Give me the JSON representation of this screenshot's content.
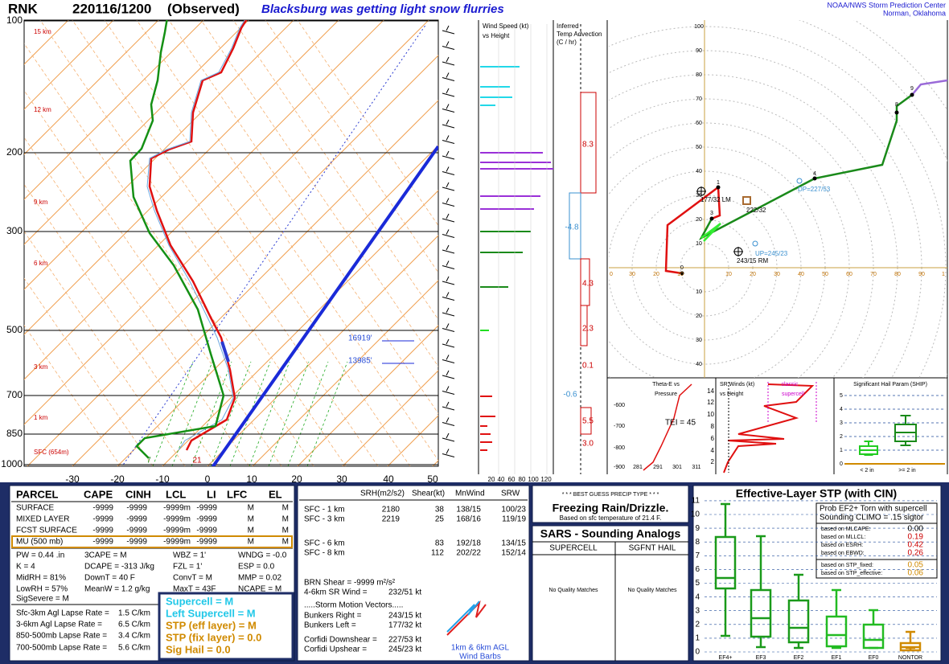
{
  "header": {
    "station": "RNK",
    "time": "220116/1200",
    "status": "(Observed)",
    "comment": "Blacksburg was getting light snow flurries",
    "org": "NOAA/NWS Storm Prediction Center",
    "location": "Norman, Oklahoma"
  },
  "skewt": {
    "pressure_labels": [
      "100",
      "200",
      "300",
      "500",
      "700",
      "850",
      "1000"
    ],
    "temp_labels": [
      "-30",
      "-20",
      "-10",
      "0",
      "10",
      "20",
      "30",
      "40",
      "50"
    ],
    "height_labels": [
      "15 km",
      "12 km",
      "9 km",
      "6 km",
      "3 km",
      "1 km",
      "SFC (654m)"
    ],
    "levels": [
      "16919'",
      "13985'"
    ],
    "sfc_dewpoint": "7",
    "sfc_temp": "21"
  },
  "wind_speed": {
    "title": "Wind Speed (kt)",
    "subtitle": "vs Height",
    "ticks": [
      "20",
      "40",
      "60",
      "80",
      "100",
      "120"
    ]
  },
  "temp_advection": {
    "title": [
      "Inferred",
      "Temp Advection",
      "(C / hr)"
    ],
    "values": [
      "8.3",
      "-4.8",
      "4.3",
      "2.3",
      "0.1",
      "-0.6",
      "5.5",
      "3.0"
    ]
  },
  "hodograph": {
    "y_ticks_up": [
      "100",
      "90",
      "80",
      "70",
      "60",
      "50",
      "40",
      "30",
      "20",
      "10"
    ],
    "y_ticks_down": [
      "10",
      "20",
      "30",
      "40"
    ],
    "x_ticks_left": [
      "0",
      "30",
      "20",
      "10"
    ],
    "x_ticks_right": [
      "10",
      "20",
      "30",
      "40",
      "50",
      "60",
      "70",
      "80",
      "90",
      "1"
    ],
    "points": [
      "0",
      "1",
      "3",
      "4",
      "8",
      "9"
    ],
    "left_mover": "177/32 LM",
    "mean_wind": "222/32",
    "downshear": "DP=227/53",
    "upshear": "UP=245/23",
    "right_mover": "243/15 RM"
  },
  "theta_e": {
    "title": [
      "Theta-E vs",
      "Pressure"
    ],
    "tei": "TEI = 45",
    "y_ticks": [
      "-600",
      "-700",
      "-800",
      "-900"
    ],
    "x_ticks": [
      "281",
      "291",
      "301",
      "311"
    ]
  },
  "sr_winds": {
    "title": [
      "SR Winds (kt)",
      "vs Height"
    ],
    "note": [
      "classic",
      "supercell"
    ],
    "y_ticks": [
      "14",
      "12",
      "10",
      "8",
      "6",
      "4",
      "2"
    ]
  },
  "ship": {
    "title": "Significant Hail Param (SHIP)",
    "y_ticks": [
      "5",
      "4",
      "3",
      "2",
      "1",
      "0"
    ],
    "x_ticks": [
      "< 2 in",
      ">= 2 in"
    ]
  },
  "parcel": {
    "header": [
      "PARCEL",
      "CAPE",
      "CINH",
      "LCL",
      "LI",
      "LFC",
      "EL"
    ],
    "rows": [
      [
        "SURFACE",
        "-9999",
        "-9999",
        "-9999m",
        "-9999",
        "M",
        "M"
      ],
      [
        "MIXED LAYER",
        "-9999",
        "-9999",
        "-9999m",
        "-9999",
        "M",
        "M"
      ],
      [
        "FCST SURFACE",
        "-9999",
        "-9999",
        "-9999m",
        "-9999",
        "M",
        "M"
      ],
      [
        "MU  (500 mb)",
        "-9999",
        "-9999",
        "-9999m",
        "-9999",
        "M",
        "M"
      ]
    ]
  },
  "indices": [
    [
      "PW = 0.44 .in",
      "3CAPE = M",
      "WBZ = 1'",
      "WNDG = -0.0"
    ],
    [
      "K = 4",
      "DCAPE = -313 J/kg",
      "FZL = 1'",
      "ESP = 0.0"
    ],
    [
      "MidRH = 81%",
      "DownT = 40 F",
      "ConvT = M",
      "MMP = 0.02"
    ],
    [
      "LowRH = 57%",
      "MeanW = 1.2 g/kg",
      "MaxT = 43F",
      "NCAPE = M"
    ],
    [
      "SigSevere = M"
    ]
  ],
  "lapse_rates": [
    [
      "Sfc-3km Agl Lapse Rate =",
      "1.5 C/km"
    ],
    [
      "3-6km Agl Lapse Rate =",
      "6.5 C/km"
    ],
    [
      "850-500mb Lapse Rate =",
      "3.4 C/km"
    ],
    [
      "700-500mb Lapse Rate =",
      "5.6 C/km"
    ]
  ],
  "params": [
    "Supercell = M",
    "Left Supercell = M",
    "STP (eff layer) = M",
    "STP (fix layer) = 0.0",
    "Sig Hail = 0.0"
  ],
  "kinematics": {
    "header": [
      "SRH(m2/s2)",
      "Shear(kt)",
      "MnWind",
      "SRW"
    ],
    "rows": [
      {
        "layer": "SFC - 1 km",
        "srh": "2180",
        "shear": "38",
        "mnwind": "138/15",
        "srw": "100/23"
      },
      {
        "layer": "SFC - 3 km",
        "srh": "2219",
        "shear": "25",
        "mnwind": "168/16",
        "srw": "119/19"
      },
      {
        "layer": "SFC - 6 km",
        "shear": "83",
        "mnwind": "192/18",
        "srw": "134/15"
      },
      {
        "layer": "SFC - 8 km",
        "shear": "112",
        "mnwind": "202/22",
        "srw": "152/14"
      }
    ],
    "brn_shear": "BRN Shear = -9999 m²/s²",
    "sr_wind_label": "4-6km SR Wind =",
    "sr_wind": "232/51 kt",
    "motion_header": ".....Storm Motion Vectors.....",
    "motion": [
      [
        "Bunkers Right =",
        "243/15 kt"
      ],
      [
        "Bunkers Left =",
        "177/32 kt"
      ],
      [
        "Corfidi Downshear =",
        "227/53 kt"
      ],
      [
        "Corfidi Upshear =",
        "245/23 kt"
      ]
    ],
    "barb_label": [
      "1km & 6km AGL",
      "Wind Barbs"
    ]
  },
  "precip": {
    "header": "* * * BEST GUESS PRECIP TYPE * * *",
    "type": "Freezing Rain/Drizzle.",
    "basis": "Based on sfc temperature of 21.4 F."
  },
  "sars": {
    "title": "SARS - Sounding Analogs",
    "columns": [
      "SUPERCELL",
      "SGFNT HAIL"
    ],
    "matches": [
      "No Quality Matches",
      "No Quality Matches"
    ]
  },
  "stp": {
    "title": "Effective-Layer STP (with CIN)",
    "y_ticks": [
      "11",
      "10",
      "9",
      "8",
      "7",
      "6",
      "5",
      "4",
      "3",
      "2",
      "1",
      "0"
    ],
    "x_ticks": [
      "EF4+",
      "EF3",
      "EF2",
      "EF1",
      "EF0",
      "NONTOR"
    ],
    "legend_title": [
      "Prob EF2+ Torn with supercell",
      "Sounding CLIMO = .15 sigtor"
    ],
    "legend": [
      [
        "based on MLCAPE:",
        "0.00"
      ],
      [
        "based on MLLCL:",
        "0.19"
      ],
      [
        "based on ESRH:",
        "0.42"
      ],
      [
        "based on EBWD:",
        "0.26"
      ],
      [
        "based on STP_fixed:",
        "0.05"
      ],
      [
        "based on STP_effective:",
        "0.06"
      ]
    ]
  }
}
